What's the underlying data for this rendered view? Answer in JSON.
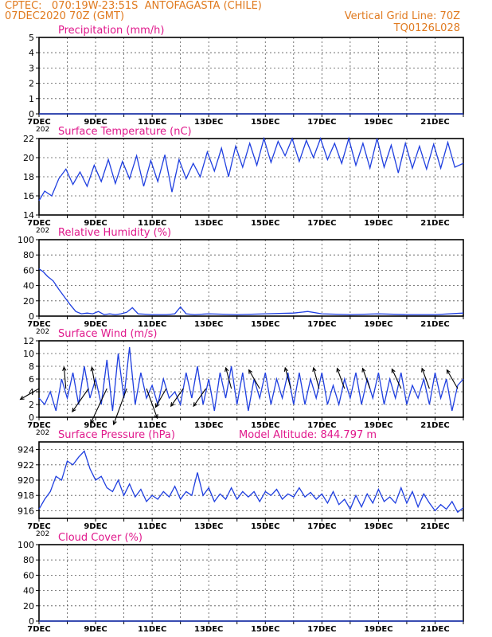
{
  "header": {
    "line1": "CPTEC:   070:19W-23:51S  ANTOFAGASTA (CHILE)",
    "line2": "07DEC2020 70Z (GMT)",
    "grid_note": "Vertical Grid Line: 70Z",
    "code": "TQ0126L028"
  },
  "colors": {
    "header": "#e07a1f",
    "title": "#e0198c",
    "line": "#1f3fe0",
    "grid": "#555555"
  },
  "x_axis": {
    "start_label": "7DEC",
    "labels": [
      "9DEC",
      "11DEC",
      "13DEC",
      "15DEC",
      "17DEC",
      "19DEC",
      "21DEC"
    ],
    "stub": "202"
  },
  "chart_data": [
    {
      "type": "line",
      "title": "Precipitation (mm/h)",
      "ylim": [
        0,
        5
      ],
      "yticks": [
        0,
        1,
        2,
        3,
        4,
        5
      ],
      "x": [
        0,
        15
      ],
      "values": [
        0,
        0
      ],
      "grid": true
    },
    {
      "type": "line",
      "title": "Surface Temperature (nC)",
      "ylim": [
        14,
        22
      ],
      "yticks": [
        14,
        16,
        18,
        20,
        22
      ],
      "x": [
        0,
        0.2,
        0.45,
        0.7,
        0.95,
        1.2,
        1.45,
        1.7,
        1.95,
        2.2,
        2.45,
        2.7,
        2.95,
        3.2,
        3.45,
        3.7,
        3.95,
        4.2,
        4.45,
        4.7,
        4.95,
        5.2,
        5.45,
        5.7,
        5.95,
        6.2,
        6.45,
        6.7,
        6.95,
        7.2,
        7.45,
        7.7,
        7.95,
        8.2,
        8.45,
        8.7,
        8.95,
        9.2,
        9.45,
        9.7,
        9.95,
        10.2,
        10.45,
        10.7,
        10.95,
        11.2,
        11.45,
        11.7,
        11.95,
        12.2,
        12.45,
        12.7,
        12.95,
        13.2,
        13.45,
        13.7,
        13.95,
        14.2,
        14.45,
        14.7,
        15
      ],
      "values": [
        15.5,
        16.5,
        16.0,
        17.8,
        18.8,
        17.2,
        18.5,
        17.0,
        19.2,
        17.5,
        19.8,
        17.3,
        19.6,
        17.8,
        20.2,
        17.0,
        19.7,
        17.5,
        20.3,
        16.4,
        19.8,
        17.8,
        19.4,
        18.0,
        20.6,
        18.6,
        21.0,
        18.0,
        21.2,
        19.0,
        21.5,
        19.2,
        22.0,
        19.5,
        21.7,
        20.2,
        22.0,
        19.6,
        21.8,
        20.0,
        22.0,
        19.8,
        21.5,
        19.4,
        22.0,
        19.2,
        21.5,
        18.9,
        22.0,
        19.0,
        21.3,
        18.4,
        21.5,
        18.9,
        21.2,
        18.8,
        21.4,
        18.9,
        21.6,
        19.0,
        19.4
      ],
      "grid": true
    },
    {
      "type": "line",
      "title": "Relative Humidity (%)",
      "ylim": [
        0,
        100
      ],
      "yticks": [
        0,
        20,
        40,
        60,
        80,
        100
      ],
      "x": [
        0,
        0.15,
        0.3,
        0.5,
        0.7,
        0.9,
        1.1,
        1.3,
        1.5,
        1.7,
        1.9,
        2.1,
        2.3,
        2.5,
        2.7,
        2.9,
        3.1,
        3.3,
        3.5,
        4.0,
        4.5,
        4.8,
        5.0,
        5.2,
        5.5,
        6.0,
        7.0,
        8.0,
        9.0,
        9.5,
        10.0,
        11.0,
        12.0,
        13.0,
        14.0,
        15.0
      ],
      "values": [
        62,
        58,
        52,
        46,
        35,
        25,
        15,
        6,
        3,
        4,
        3,
        6,
        2,
        3,
        2,
        3,
        5,
        11,
        3,
        2,
        2,
        3,
        12,
        3,
        2,
        3,
        2,
        3,
        4,
        6,
        3,
        2,
        3,
        2,
        2,
        4
      ],
      "grid": true
    },
    {
      "type": "line",
      "title": "Surface Wind (m/s)",
      "ylim": [
        0,
        12
      ],
      "yticks": [
        0,
        2,
        4,
        6,
        8,
        10,
        12
      ],
      "x": [
        0,
        0.2,
        0.4,
        0.6,
        0.8,
        1.0,
        1.2,
        1.4,
        1.6,
        1.8,
        2.0,
        2.2,
        2.4,
        2.6,
        2.8,
        3.0,
        3.2,
        3.4,
        3.6,
        3.8,
        4.0,
        4.2,
        4.4,
        4.6,
        4.8,
        5.0,
        5.2,
        5.4,
        5.6,
        5.8,
        6.0,
        6.2,
        6.4,
        6.6,
        6.8,
        7.0,
        7.2,
        7.4,
        7.6,
        7.8,
        8.0,
        8.2,
        8.4,
        8.6,
        8.8,
        9.0,
        9.2,
        9.4,
        9.6,
        9.8,
        10.0,
        10.2,
        10.4,
        10.6,
        10.8,
        11.0,
        11.2,
        11.4,
        11.6,
        11.8,
        12.0,
        12.2,
        12.4,
        12.6,
        12.8,
        13.0,
        13.2,
        13.4,
        13.6,
        13.8,
        14.0,
        14.2,
        14.4,
        14.6,
        14.8,
        15
      ],
      "values": [
        3,
        2,
        4,
        1,
        6,
        3,
        7,
        2,
        8,
        3,
        6,
        2,
        9,
        1,
        10,
        3,
        11,
        2,
        7,
        3,
        5,
        2,
        6,
        3,
        4,
        2,
        7,
        3,
        8,
        2,
        6,
        1,
        7,
        3,
        8,
        2,
        7,
        1,
        6,
        3,
        7,
        2,
        6,
        3,
        7,
        2,
        7,
        2,
        6,
        3,
        7,
        2,
        5,
        2,
        6,
        3,
        7,
        2,
        6,
        3,
        7,
        2,
        6,
        3,
        7,
        2,
        5,
        3,
        6,
        2,
        7,
        3,
        6,
        1,
        5,
        6
      ],
      "arrows": [
        {
          "x": 0.0,
          "speed": 5,
          "dir_deg": 240
        },
        {
          "x": 0.95,
          "speed": 5,
          "dir_deg": 355
        },
        {
          "x": 1.75,
          "speed": 7,
          "dir_deg": 215
        },
        {
          "x": 2.0,
          "speed": 5,
          "dir_deg": 350
        },
        {
          "x": 2.4,
          "speed": 10,
          "dir_deg": 205
        },
        {
          "x": 3.1,
          "speed": 10,
          "dir_deg": 200
        },
        {
          "x": 3.8,
          "speed": 8,
          "dir_deg": 160
        },
        {
          "x": 4.5,
          "speed": 5,
          "dir_deg": 210
        },
        {
          "x": 5.1,
          "speed": 5,
          "dir_deg": 215
        },
        {
          "x": 5.9,
          "speed": 5,
          "dir_deg": 215
        },
        {
          "x": 6.8,
          "speed": 5,
          "dir_deg": 345
        },
        {
          "x": 7.8,
          "speed": 5,
          "dir_deg": 330
        },
        {
          "x": 8.9,
          "speed": 5,
          "dir_deg": 345
        },
        {
          "x": 9.9,
          "speed": 5,
          "dir_deg": 345
        },
        {
          "x": 10.8,
          "speed": 5,
          "dir_deg": 340
        },
        {
          "x": 11.7,
          "speed": 5,
          "dir_deg": 340
        },
        {
          "x": 12.8,
          "speed": 5,
          "dir_deg": 335
        },
        {
          "x": 13.8,
          "speed": 5,
          "dir_deg": 340
        },
        {
          "x": 14.8,
          "speed": 5,
          "dir_deg": 330
        }
      ],
      "grid": true
    },
    {
      "type": "line",
      "title": "Surface Pressure (hPa)",
      "annotation": "Model Altitude: 844.797 m",
      "ylim": [
        915,
        925
      ],
      "yticks": [
        916,
        918,
        920,
        922,
        924
      ],
      "x": [
        0,
        0.2,
        0.4,
        0.6,
        0.8,
        1.0,
        1.2,
        1.4,
        1.6,
        1.8,
        2.0,
        2.2,
        2.4,
        2.6,
        2.8,
        3.0,
        3.2,
        3.4,
        3.6,
        3.8,
        4.0,
        4.2,
        4.4,
        4.6,
        4.8,
        5.0,
        5.2,
        5.4,
        5.6,
        5.8,
        6.0,
        6.2,
        6.4,
        6.6,
        6.8,
        7.0,
        7.2,
        7.4,
        7.6,
        7.8,
        8.0,
        8.2,
        8.4,
        8.6,
        8.8,
        9.0,
        9.2,
        9.4,
        9.6,
        9.8,
        10.0,
        10.2,
        10.4,
        10.6,
        10.8,
        11.0,
        11.2,
        11.4,
        11.6,
        11.8,
        12.0,
        12.2,
        12.4,
        12.6,
        12.8,
        13.0,
        13.2,
        13.4,
        13.6,
        13.8,
        14.0,
        14.2,
        14.4,
        14.6,
        14.8,
        15
      ],
      "values": [
        916.2,
        917.5,
        918.5,
        920.5,
        920.0,
        922.5,
        922.0,
        923.0,
        923.8,
        921.5,
        920.0,
        920.5,
        919.0,
        918.5,
        920.0,
        918.0,
        919.5,
        917.8,
        918.8,
        917.2,
        918.0,
        917.5,
        918.5,
        917.8,
        919.2,
        917.5,
        918.5,
        918.0,
        921.0,
        918.0,
        919.0,
        917.2,
        918.2,
        917.5,
        919.0,
        917.5,
        918.5,
        917.8,
        918.5,
        917.2,
        918.5,
        918.0,
        918.8,
        917.5,
        918.2,
        917.8,
        919.0,
        917.8,
        918.4,
        917.5,
        918.2,
        917.0,
        918.5,
        916.8,
        917.5,
        916.2,
        918.0,
        916.5,
        918.2,
        917.0,
        918.8,
        917.2,
        917.8,
        917.0,
        919.0,
        917.0,
        918.5,
        916.5,
        918.2,
        917.0,
        916.0,
        916.8,
        916.2,
        917.2,
        915.8,
        916.4
      ],
      "grid": true
    },
    {
      "type": "line",
      "title": "Cloud Cover (%)",
      "ylim": [
        0,
        100
      ],
      "yticks": [
        0,
        20,
        40,
        60,
        80,
        100
      ],
      "x": [
        0,
        15
      ],
      "values": [
        0,
        0
      ],
      "grid": true
    }
  ]
}
